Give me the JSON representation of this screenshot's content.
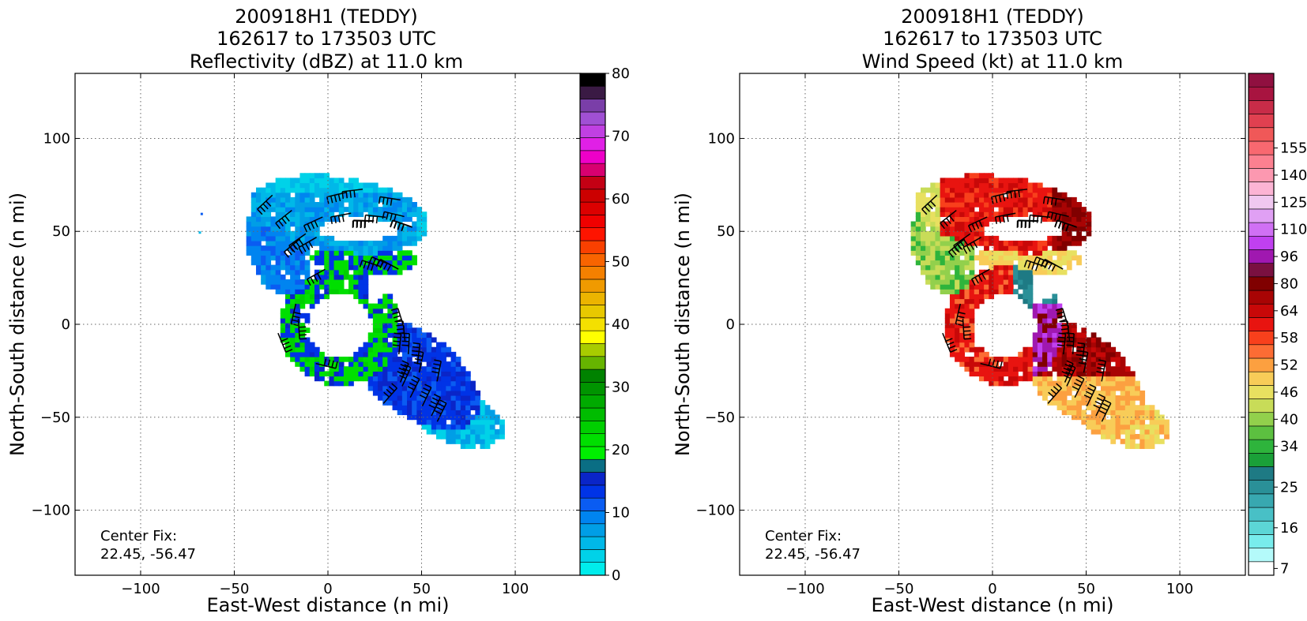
{
  "chart_data": [
    {
      "type": "heatmap",
      "title_lines": [
        "200918H1 (TEDDY)",
        "162617 to 173503 UTC",
        "Reflectivity (dBZ) at 11.0 km"
      ],
      "xlabel": "East-West distance (n mi)",
      "ylabel": "North-South distance (n mi)",
      "xlim": [
        -135,
        135
      ],
      "ylim": [
        -135,
        135
      ],
      "x_ticks": [
        -100,
        -50,
        0,
        50,
        100
      ],
      "y_ticks": [
        -100,
        -50,
        0,
        50,
        100
      ],
      "x_tick_labels": [
        "−100",
        "−50",
        "0",
        "50",
        "100"
      ],
      "y_tick_labels": [
        "−100",
        "−50",
        "0",
        "50",
        "100"
      ],
      "grid": true,
      "annotation": [
        "Center Fix:",
        "22.45, -56.47"
      ],
      "colorbar": {
        "label_values": [
          0,
          10,
          20,
          30,
          40,
          50,
          60,
          70,
          80
        ],
        "label_texts": [
          "0",
          "10",
          "20",
          "30",
          "40",
          "50",
          "60",
          "70",
          "80"
        ],
        "colors": [
          "#00ecec",
          "#00d2e8",
          "#00b8e8",
          "#009ee6",
          "#0084f0",
          "#0a5cf2",
          "#0033e6",
          "#0a25c8",
          "#0a6e84",
          "#00ee00",
          "#00df00",
          "#00cf00",
          "#00bc00",
          "#00aa00",
          "#009400",
          "#008200",
          "#66b400",
          "#a8cc00",
          "#ffff00",
          "#f4e000",
          "#e8c800",
          "#ecb400",
          "#f09a00",
          "#f48000",
          "#f86400",
          "#fa4000",
          "#fe1400",
          "#f00000",
          "#dc0000",
          "#cc0000",
          "#c40014",
          "#d80070",
          "#ee00c8",
          "#e020e6",
          "#c040e2",
          "#a050d4",
          "#7a3ea8",
          "#3a1a44",
          "#000000"
        ],
        "vmin": 0,
        "vmax": 80
      }
    },
    {
      "type": "heatmap",
      "title_lines": [
        "200918H1 (TEDDY)",
        "162617 to 173503 UTC",
        "Wind Speed (kt) at 11.0 km"
      ],
      "xlabel": "East-West distance (n mi)",
      "ylabel": "North-South distance (n mi)",
      "xlim": [
        -135,
        135
      ],
      "ylim": [
        -135,
        135
      ],
      "x_ticks": [
        -100,
        -50,
        0,
        50,
        100
      ],
      "y_ticks": [
        -100,
        -50,
        0,
        50,
        100
      ],
      "x_tick_labels": [
        "−100",
        "−50",
        "0",
        "50",
        "100"
      ],
      "y_tick_labels": [
        "−100",
        "−50",
        "0",
        "50",
        "100"
      ],
      "grid": true,
      "annotation": [
        "Center Fix:",
        "22.45, -56.47"
      ],
      "colorbar": {
        "label_texts": [
          "7",
          "16",
          "25",
          "34",
          "40",
          "46",
          "52",
          "58",
          "64",
          "80",
          "96",
          "110",
          "125",
          "140",
          "155"
        ],
        "label_bin_index": [
          0,
          3,
          6,
          9,
          11,
          13,
          15,
          17,
          19,
          21,
          23,
          25,
          27,
          29,
          31
        ],
        "colors": [
          "#ffffff",
          "#b4fafa",
          "#78ecec",
          "#5cd6d6",
          "#48c0c6",
          "#38a8b0",
          "#2a9098",
          "#1e7a84",
          "#1aa038",
          "#2eb43c",
          "#5cc040",
          "#92d04c",
          "#c8dc58",
          "#e8e060",
          "#f8cc58",
          "#fca040",
          "#fc6c34",
          "#f8401c",
          "#e81410",
          "#c80808",
          "#a80404",
          "#800000",
          "#7a1040",
          "#a018b0",
          "#c040f0",
          "#d070f4",
          "#e0a0f4",
          "#f0c8f0",
          "#fcb4d4",
          "#fc98b0",
          "#fc8090",
          "#f86870",
          "#f05858",
          "#e04050",
          "#c82c48",
          "#a81440",
          "#901040"
        ]
      }
    }
  ]
}
